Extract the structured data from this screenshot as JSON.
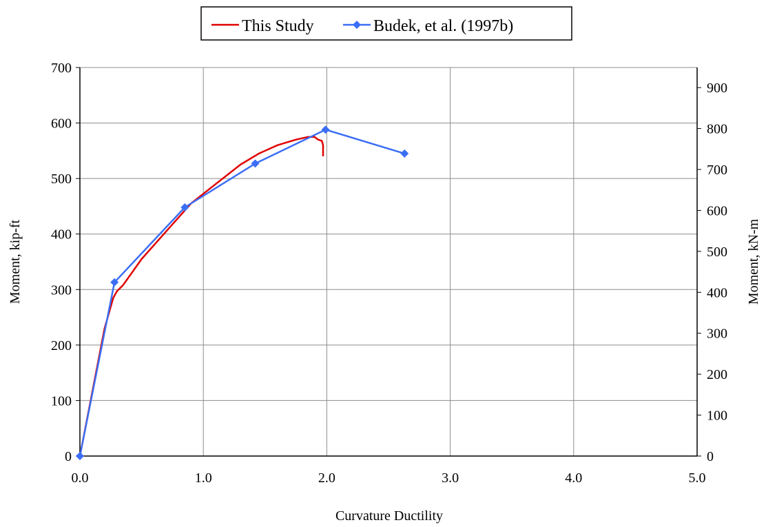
{
  "chart_data": {
    "type": "line",
    "title": "",
    "xlabel": "Curvature Ductility",
    "ylabel": "Moment, kip-ft",
    "y2label": "Moment, kN-m",
    "xlim": [
      0,
      5
    ],
    "ylim": [
      0,
      700
    ],
    "y2lim": [
      0,
      949.07
    ],
    "x_ticks": [
      "0.0",
      "1.0",
      "2.0",
      "3.0",
      "4.0",
      "5.0"
    ],
    "y_ticks": [
      "0",
      "100",
      "200",
      "300",
      "400",
      "500",
      "600",
      "700"
    ],
    "y2_ticks": [
      "0",
      "100",
      "200",
      "300",
      "400",
      "500",
      "600",
      "700",
      "800",
      "900"
    ],
    "grid": true,
    "legend_position": "top-center",
    "series": [
      {
        "name": "This Study",
        "color": "#e00000",
        "marker": "none",
        "x": [
          0.0,
          0.1,
          0.2,
          0.27,
          0.3,
          0.35,
          0.5,
          0.7,
          0.9,
          1.1,
          1.3,
          1.45,
          1.6,
          1.75,
          1.85,
          1.9,
          1.93,
          1.96,
          1.97,
          1.97
        ],
        "y": [
          0,
          115,
          230,
          285,
          297,
          308,
          355,
          405,
          455,
          490,
          525,
          545,
          560,
          570,
          575,
          575,
          570,
          568,
          560,
          540
        ]
      },
      {
        "name": "Budek, et al. (1997b)",
        "color": "#3b6ef5",
        "marker": "diamond",
        "x": [
          0.0,
          0.28,
          0.85,
          1.42,
          1.99,
          2.63
        ],
        "y": [
          0,
          313,
          448,
          527,
          588,
          545
        ]
      }
    ]
  }
}
